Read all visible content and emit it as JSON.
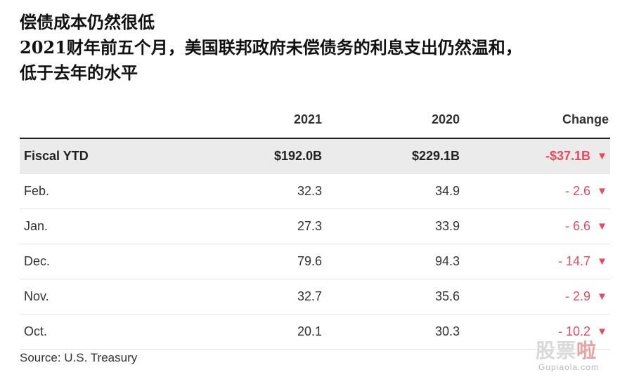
{
  "title": {
    "line1": "偿债成本仍然很低",
    "line2": "2021财年前五个月，美国联邦政府未偿债务的利息支出仍然温和，",
    "line3": "低于去年的水平"
  },
  "chart_data": {
    "type": "table",
    "columns": [
      "",
      "2021",
      "2020",
      "Change"
    ],
    "rows": [
      {
        "label": "Fiscal YTD",
        "v2021": "$192.0B",
        "v2020": "$229.1B",
        "change": "-$37.1B",
        "direction": "down",
        "highlight": true
      },
      {
        "label": "Feb.",
        "v2021": "32.3",
        "v2020": "34.9",
        "change": "-  2.6",
        "direction": "down"
      },
      {
        "label": "Jan.",
        "v2021": "27.3",
        "v2020": "33.9",
        "change": "-  6.6",
        "direction": "down"
      },
      {
        "label": "Dec.",
        "v2021": "79.6",
        "v2020": "94.3",
        "change": "-  14.7",
        "direction": "down"
      },
      {
        "label": "Nov.",
        "v2021": "32.7",
        "v2020": "35.6",
        "change": "-  2.9",
        "direction": "down"
      },
      {
        "label": "Oct.",
        "v2021": "20.1",
        "v2020": "30.3",
        "change": "-  10.2",
        "direction": "down"
      }
    ]
  },
  "source": "Source: U.S. Treasury",
  "watermark": {
    "chinese": "股票啦",
    "english": "Gupiaola.com"
  },
  "colors": {
    "negative": "#e84a5f",
    "highlight_row": "#ebebeb",
    "rule": "#222222"
  },
  "icons": {
    "down": "▼"
  }
}
